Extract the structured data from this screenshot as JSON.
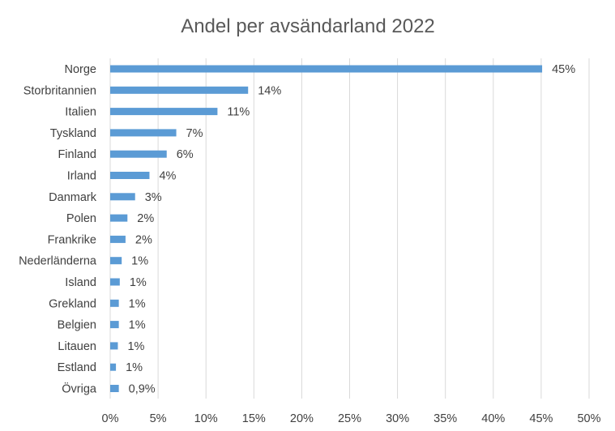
{
  "chart_data": {
    "type": "bar",
    "orientation": "horizontal",
    "title": "Andel per avsändarland 2022",
    "categories": [
      "Norge",
      "Storbritannien",
      "Italien",
      "Tyskland",
      "Finland",
      "Irland",
      "Danmark",
      "Polen",
      "Frankrike",
      "Nederländerna",
      "Island",
      "Grekland",
      "Belgien",
      "Litauen",
      "Estland",
      "Övriga"
    ],
    "values": [
      45.1,
      14.4,
      11.2,
      6.9,
      5.9,
      4.1,
      2.6,
      1.8,
      1.6,
      1.2,
      1.0,
      0.9,
      0.9,
      0.8,
      0.6,
      0.9
    ],
    "data_labels": [
      "45%",
      "14%",
      "11%",
      "7%",
      "6%",
      "4%",
      "3%",
      "2%",
      "2%",
      "1%",
      "1%",
      "1%",
      "1%",
      "1%",
      "1%",
      "0,9%"
    ],
    "xlim": [
      0,
      50
    ],
    "xticks": [
      0,
      5,
      10,
      15,
      20,
      25,
      30,
      35,
      40,
      45,
      50
    ],
    "xtick_labels": [
      "0%",
      "5%",
      "10%",
      "15%",
      "20%",
      "25%",
      "30%",
      "35%",
      "40%",
      "45%",
      "50%"
    ],
    "grid": "vertical",
    "bar_color": "#5b9bd5",
    "legend": "none"
  }
}
